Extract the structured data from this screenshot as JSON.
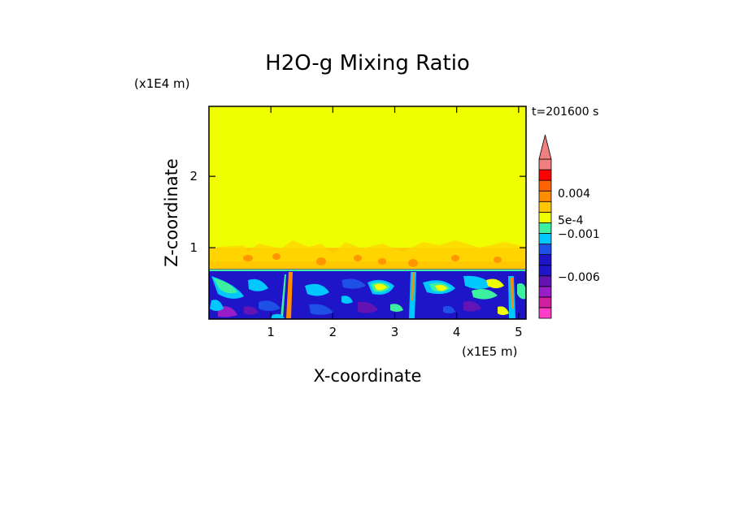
{
  "chart_data": {
    "type": "heatmap",
    "title": "H2O-g Mixing Ratio",
    "xlabel": "X-coordinate",
    "ylabel": "Z-coordinate",
    "x_scale_label": "(x1E5 m)",
    "y_scale_label": "(x1E4 m)",
    "time_label": "t=201600 s",
    "xlim": [
      0,
      5.12
    ],
    "ylim": [
      0,
      2.98
    ],
    "x_ticks": [
      {
        "value": 1,
        "label": "1"
      },
      {
        "value": 2,
        "label": "2"
      },
      {
        "value": 3,
        "label": "3"
      },
      {
        "value": 4,
        "label": "4"
      },
      {
        "value": 5,
        "label": "5"
      }
    ],
    "y_ticks": [
      {
        "value": 1,
        "label": "1"
      },
      {
        "value": 2,
        "label": "2"
      }
    ],
    "regions": {
      "upper_layer": {
        "z_min": 1.0,
        "z_max": 2.98,
        "color": "#f0ff00"
      },
      "transition_layer": {
        "z_min": 0.7,
        "z_max": 1.0,
        "color": "#ffc800"
      },
      "lower_layer": {
        "z_min": 0,
        "z_max": 0.7,
        "color": "#1e14c8"
      }
    },
    "colorbar": {
      "levels": [
        {
          "color": "#ff3ec8"
        },
        {
          "color": "#d01ea0"
        },
        {
          "color": "#9a1ec8"
        },
        {
          "color": "#6414b4"
        },
        {
          "color": "#1e14c8"
        },
        {
          "color": "#1e14c8"
        },
        {
          "color": "#1e50e6"
        },
        {
          "color": "#00c8ff"
        },
        {
          "color": "#3cf0a0"
        },
        {
          "color": "#f0ff00"
        },
        {
          "color": "#ffc800"
        },
        {
          "color": "#ff8c00"
        },
        {
          "color": "#ff6400"
        },
        {
          "color": "#ff0000"
        },
        {
          "color": "#f08080"
        }
      ],
      "labels": [
        "0.004",
        "5e-4",
        "−0.001",
        "−0.006"
      ],
      "top_arrow_color": "#f08080"
    }
  }
}
